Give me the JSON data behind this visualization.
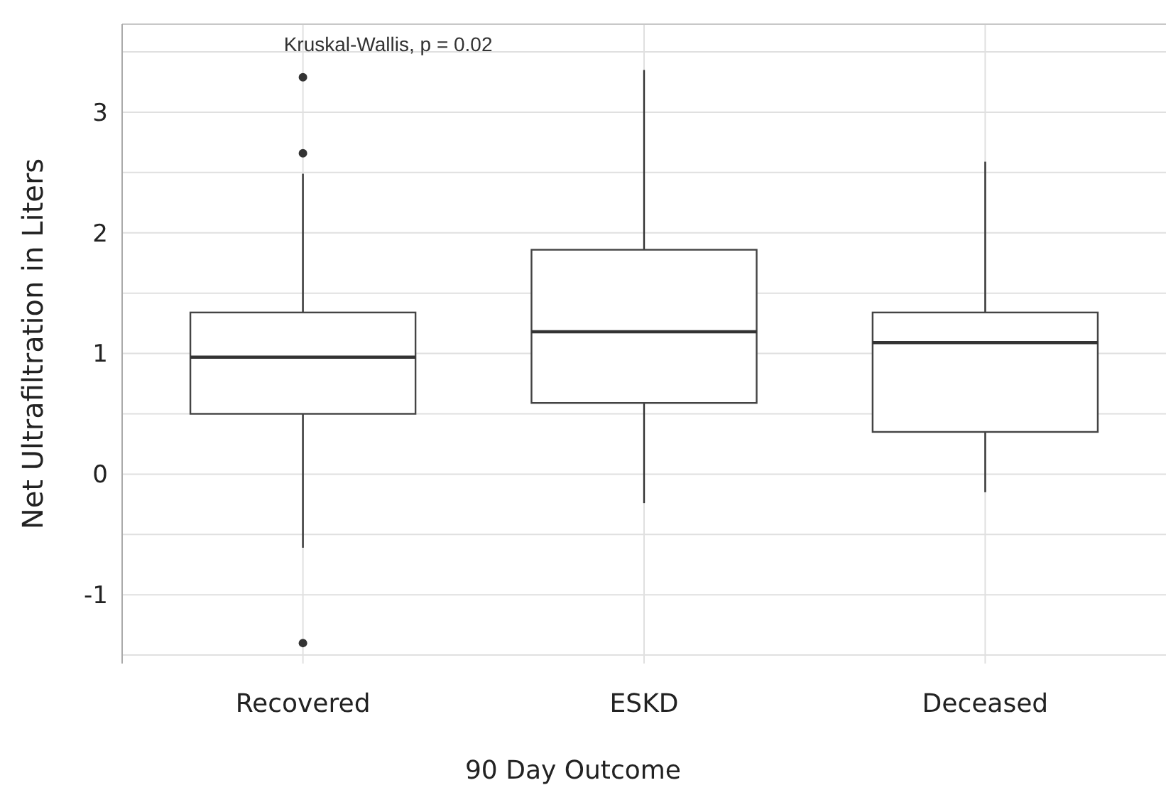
{
  "chart_data": {
    "type": "box",
    "categories": [
      "Recovered",
      "ESKD",
      "Deceased"
    ],
    "boxes": [
      {
        "low": -0.61,
        "q1": 0.5,
        "median": 0.97,
        "q3": 1.34,
        "high": 2.49,
        "outliers": [
          2.66,
          3.29,
          -1.4
        ]
      },
      {
        "low": -0.24,
        "q1": 0.59,
        "median": 1.18,
        "q3": 1.86,
        "high": 3.35
      },
      {
        "low": -0.15,
        "q1": 0.35,
        "median": 1.09,
        "q3": 1.34,
        "high": 2.59
      }
    ],
    "xlabel": "90 Day Outcome",
    "ylabel": "Net Ultrafiltration in Liters",
    "annotations": [
      "Kruskal-Wallis, p = 0.02"
    ],
    "ylim": [
      -1.57,
      3.73
    ],
    "yticks": [
      {
        "value": -1.5,
        "label": null
      },
      -1,
      {
        "value": -0.5,
        "label": null
      },
      0,
      {
        "value": 0.5,
        "label": null
      },
      1,
      {
        "value": 1.5,
        "label": null
      },
      2,
      {
        "value": 2.5,
        "label": null
      },
      3,
      {
        "value": 3.5,
        "label": null
      }
    ],
    "grid": true
  }
}
